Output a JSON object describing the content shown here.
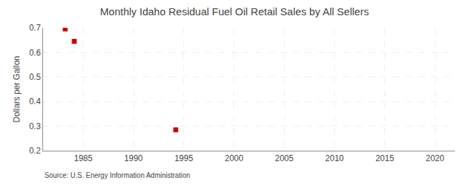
{
  "chart_data": {
    "type": "scatter",
    "title": "Monthly Idaho Residual Fuel Oil Retail Sales by All Sellers",
    "ylabel": "Dollars per Gallon",
    "annotations": [
      "Source: U.S. Energy Information Administration"
    ],
    "x": [
      1983.2,
      1984.1,
      1994.2
    ],
    "values": [
      0.695,
      0.645,
      0.285
    ],
    "color": "#cc0000",
    "marker": "square",
    "xlim": [
      1981,
      2022
    ],
    "ylim": [
      0.2,
      0.7
    ],
    "xticks": [
      1985,
      1990,
      1995,
      2000,
      2005,
      2010,
      2015,
      2020
    ],
    "yticks": [
      0.2,
      0.3,
      0.4,
      0.5,
      0.6,
      0.7
    ],
    "grid": true
  }
}
